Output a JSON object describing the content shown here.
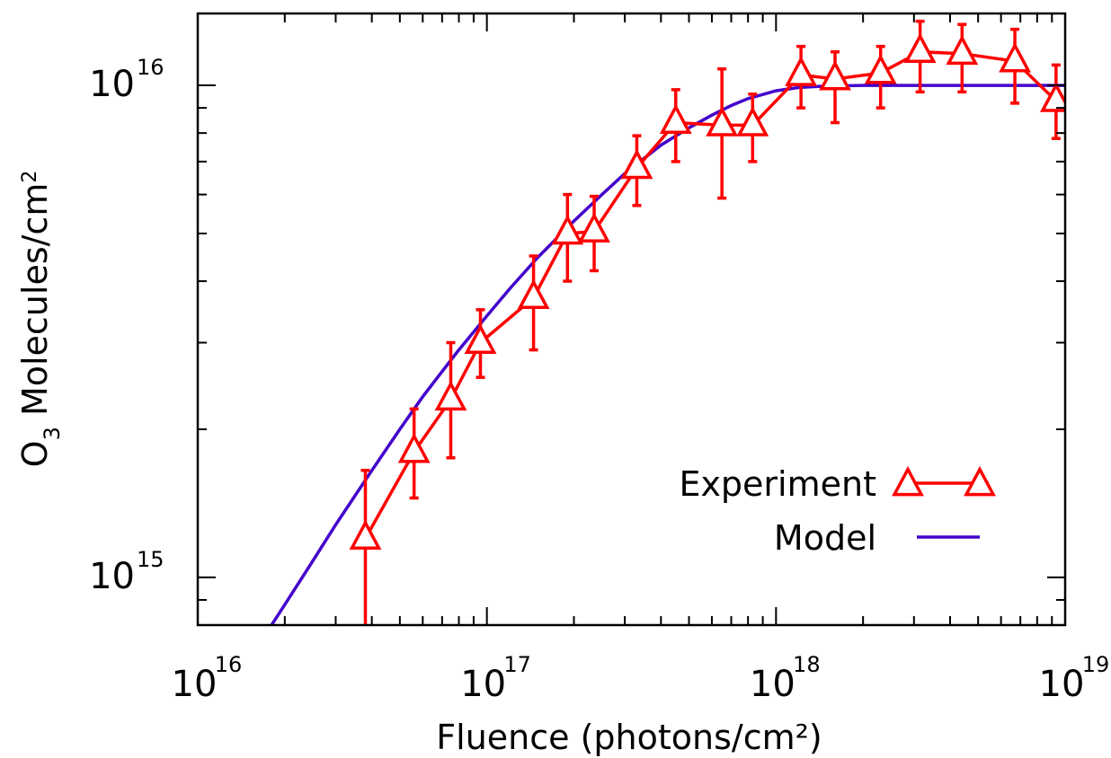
{
  "chart_data": {
    "type": "line",
    "xscale": "log",
    "yscale": "log",
    "xlim": [
      1e+16,
      1e+19
    ],
    "ylim": [
      800000000000000.0,
      1.4e+16
    ],
    "xlabel": "Fluence (photons/cm²)",
    "ylabel": "O3 Molecules/cm2",
    "x_ticks": [
      {
        "base": "10",
        "exp": "16"
      },
      {
        "base": "10",
        "exp": "17"
      },
      {
        "base": "10",
        "exp": "18"
      },
      {
        "base": "10",
        "exp": "19"
      }
    ],
    "y_ticks": [
      {
        "base": "10",
        "exp": "15"
      },
      {
        "base": "10",
        "exp": "16"
      }
    ],
    "grid": false,
    "legend_position": "bottom-right",
    "series": [
      {
        "name": "Experiment",
        "color": "#ff0000",
        "marker": "triangle",
        "points": [
          {
            "x": 3.8e+16,
            "y": 1200000000000000.0,
            "ylow": 780000000000000.0,
            "yhigh": 1650000000000000.0
          },
          {
            "x": 5.6e+16,
            "y": 1800000000000000.0,
            "ylow": 1450000000000000.0,
            "yhigh": 2200000000000000.0
          },
          {
            "x": 7.5e+16,
            "y": 2300000000000000.0,
            "ylow": 1750000000000000.0,
            "yhigh": 3000000000000000.0
          },
          {
            "x": 9.5e+16,
            "y": 3000000000000000.0,
            "ylow": 2550000000000000.0,
            "yhigh": 3500000000000000.0
          },
          {
            "x": 1.45e+17,
            "y": 3700000000000000.0,
            "ylow": 2900000000000000.0,
            "yhigh": 4500000000000000.0
          },
          {
            "x": 1.9e+17,
            "y": 5000000000000000.0,
            "ylow": 4000000000000000.0,
            "yhigh": 6000000000000000.0
          },
          {
            "x": 2.35e+17,
            "y": 5050000000000000.0,
            "ylow": 4200000000000000.0,
            "yhigh": 5950000000000000.0
          },
          {
            "x": 3.3e+17,
            "y": 6800000000000000.0,
            "ylow": 5700000000000000.0,
            "yhigh": 7900000000000000.0
          },
          {
            "x": 4.5e+17,
            "y": 8400000000000000.0,
            "ylow": 7000000000000000.0,
            "yhigh": 9800000000000000.0
          },
          {
            "x": 6.5e+17,
            "y": 8300000000000000.0,
            "ylow": 5900000000000000.0,
            "yhigh": 1.08e+16
          },
          {
            "x": 8.3e+17,
            "y": 8300000000000000.0,
            "ylow": 7000000000000000.0,
            "yhigh": 9600000000000000.0
          },
          {
            "x": 1.22e+18,
            "y": 1.05e+16,
            "ylow": 9000000000000000.0,
            "yhigh": 1.2e+16
          },
          {
            "x": 1.6e+18,
            "y": 1.03e+16,
            "ylow": 8400000000000000.0,
            "yhigh": 1.17e+16
          },
          {
            "x": 2.3e+18,
            "y": 1.06e+16,
            "ylow": 9000000000000000.0,
            "yhigh": 1.2e+16
          },
          {
            "x": 3.15e+18,
            "y": 1.17e+16,
            "ylow": 9700000000000000.0,
            "yhigh": 1.35e+16
          },
          {
            "x": 4.4e+18,
            "y": 1.16e+16,
            "ylow": 9700000000000000.0,
            "yhigh": 1.33e+16
          },
          {
            "x": 6.7e+18,
            "y": 1.12e+16,
            "ylow": 9200000000000000.0,
            "yhigh": 1.3e+16
          },
          {
            "x": 9.3e+18,
            "y": 9300000000000000.0,
            "ylow": 7800000000000000.0,
            "yhigh": 1.1e+16
          }
        ]
      },
      {
        "name": "Model",
        "color": "#4400cc",
        "marker": "none",
        "points": [
          {
            "x": 1.8e+16,
            "y": 800000000000000.0
          },
          {
            "x": 2e+16,
            "y": 880000000000000.0
          },
          {
            "x": 2.5e+16,
            "y": 1080000000000000.0
          },
          {
            "x": 3e+16,
            "y": 1280000000000000.0
          },
          {
            "x": 4e+16,
            "y": 1650000000000000.0
          },
          {
            "x": 5e+16,
            "y": 2000000000000000.0
          },
          {
            "x": 6e+16,
            "y": 2330000000000000.0
          },
          {
            "x": 7e+16,
            "y": 2620000000000000.0
          },
          {
            "x": 8e+16,
            "y": 2900000000000000.0
          },
          {
            "x": 1e+17,
            "y": 3400000000000000.0
          },
          {
            "x": 1.2e+17,
            "y": 3860000000000000.0
          },
          {
            "x": 1.5e+17,
            "y": 4470000000000000.0
          },
          {
            "x": 2e+17,
            "y": 5300000000000000.0
          },
          {
            "x": 2.5e+17,
            "y": 6000000000000000.0
          },
          {
            "x": 3e+17,
            "y": 6620000000000000.0
          },
          {
            "x": 4e+17,
            "y": 7560000000000000.0
          },
          {
            "x": 5e+17,
            "y": 8200000000000000.0
          },
          {
            "x": 6e+17,
            "y": 8700000000000000.0
          },
          {
            "x": 7e+17,
            "y": 9100000000000000.0
          },
          {
            "x": 8e+17,
            "y": 9400000000000000.0
          },
          {
            "x": 1e+18,
            "y": 9750000000000000.0
          },
          {
            "x": 1.2e+18,
            "y": 9900000000000000.0
          },
          {
            "x": 1.5e+18,
            "y": 9970000000000000.0
          },
          {
            "x": 2e+18,
            "y": 1e+16
          },
          {
            "x": 3e+18,
            "y": 1e+16
          },
          {
            "x": 5e+18,
            "y": 1e+16
          },
          {
            "x": 1e+19,
            "y": 1e+16
          }
        ]
      }
    ]
  }
}
